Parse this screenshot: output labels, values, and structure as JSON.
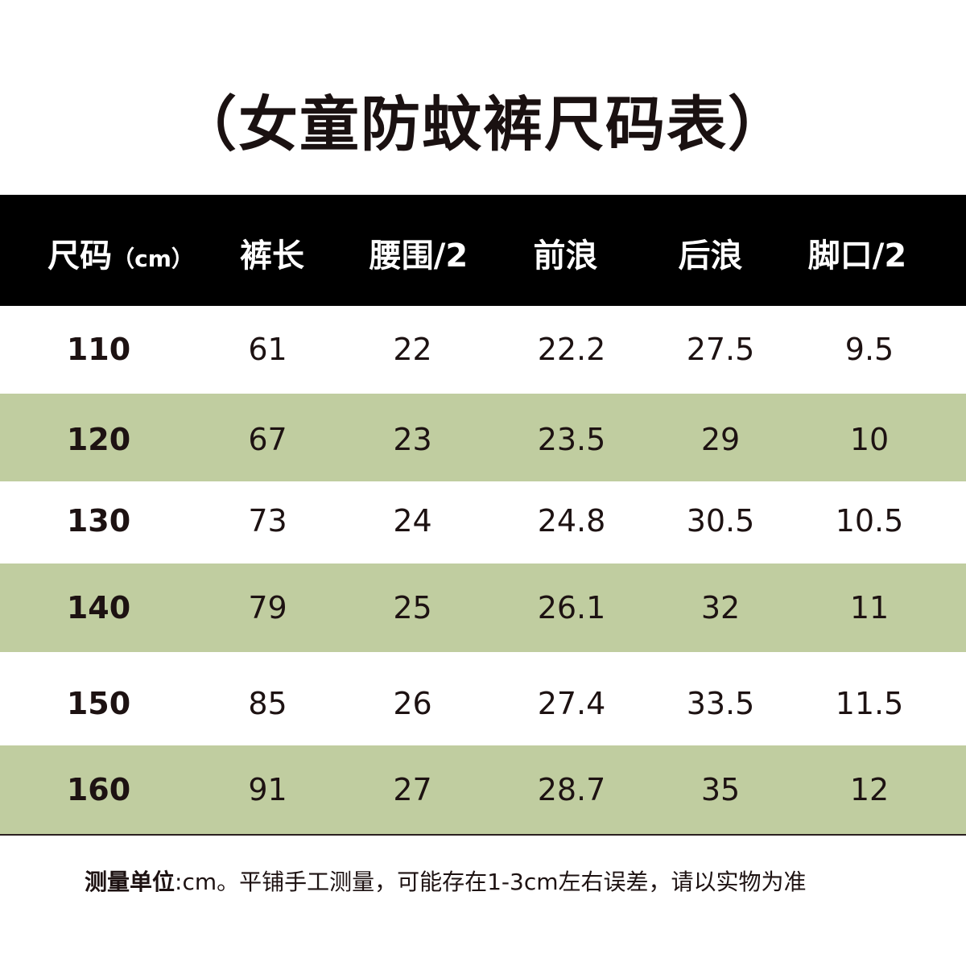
{
  "title": "（女童防蚊裤尺码表）",
  "table": {
    "headers": {
      "size": "尺码",
      "size_unit": "（cm）",
      "length": "裤长",
      "waist": "腰围/2",
      "front_rise": "前浪",
      "back_rise": "后浪",
      "hem": "脚口/2"
    },
    "rows": [
      {
        "size": "110",
        "length": "61",
        "waist": "22",
        "front_rise": "22.2",
        "back_rise": "27.5",
        "hem": "9.5"
      },
      {
        "size": "120",
        "length": "67",
        "waist": "23",
        "front_rise": "23.5",
        "back_rise": "29",
        "hem": "10"
      },
      {
        "size": "130",
        "length": "73",
        "waist": "24",
        "front_rise": "24.8",
        "back_rise": "30.5",
        "hem": "10.5"
      },
      {
        "size": "140",
        "length": "79",
        "waist": "25",
        "front_rise": "26.1",
        "back_rise": "32",
        "hem": "11"
      },
      {
        "size": "150",
        "length": "85",
        "waist": "26",
        "front_rise": "27.4",
        "back_rise": "33.5",
        "hem": "11.5"
      },
      {
        "size": "160",
        "length": "91",
        "waist": "27",
        "front_rise": "28.7",
        "back_rise": "35",
        "hem": "12"
      }
    ],
    "colors": {
      "header_bg": "#000000",
      "alt_row_bg": "#c0cda0"
    }
  },
  "note": {
    "label": "测量单位",
    "text": ":cm。平铺手工测量，可能存在1-3cm左右误差，请以实物为准"
  }
}
